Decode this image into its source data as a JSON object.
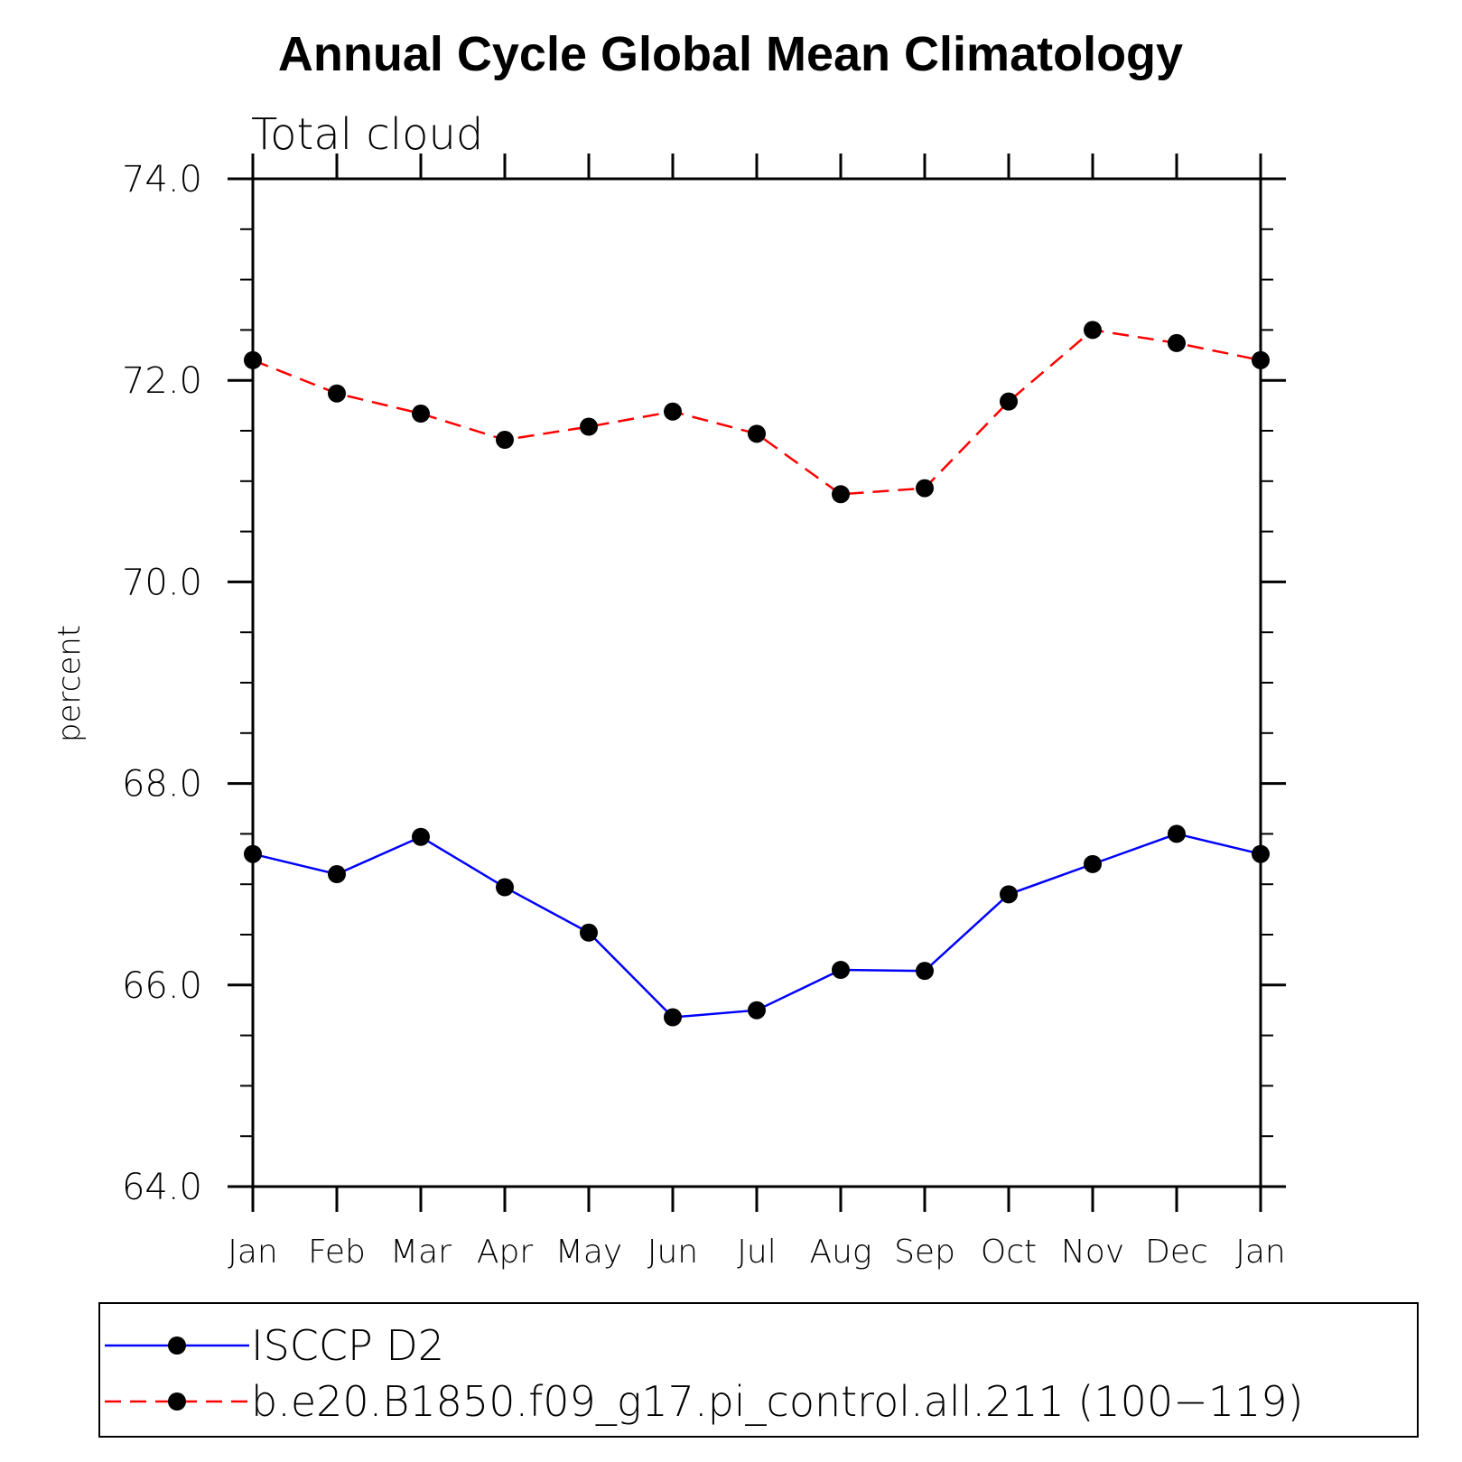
{
  "chart_data": {
    "type": "line",
    "title": "Annual Cycle Global Mean Climatology",
    "subtitle": "Total cloud",
    "ylabel": "percent",
    "xlabel": "",
    "ylim": [
      64.0,
      74.0
    ],
    "y_ticks": [
      "64.0",
      "66.0",
      "68.0",
      "70.0",
      "72.0",
      "74.0"
    ],
    "categories": [
      "Jan",
      "Feb",
      "Mar",
      "Apr",
      "May",
      "Jun",
      "Jul",
      "Aug",
      "Sep",
      "Oct",
      "Nov",
      "Dec",
      "Jan"
    ],
    "series": [
      {
        "name": "ISCCP D2",
        "color": "#0000ff",
        "dash": "solid",
        "marker": "filled-circle",
        "values": [
          67.3,
          67.1,
          67.47,
          66.97,
          66.52,
          65.68,
          65.75,
          66.15,
          66.14,
          66.9,
          67.2,
          67.5,
          67.3
        ]
      },
      {
        "name": "b.e20.B1850.f09_g17.pi_control.all.211 (100−119)",
        "color": "#ff0000",
        "dash": "dashed",
        "marker": "filled-circle",
        "values": [
          72.2,
          71.87,
          71.67,
          71.41,
          71.54,
          71.69,
          71.47,
          70.87,
          70.93,
          71.79,
          72.5,
          72.37,
          72.2
        ]
      }
    ],
    "grid": false,
    "legend_position": "bottom"
  }
}
